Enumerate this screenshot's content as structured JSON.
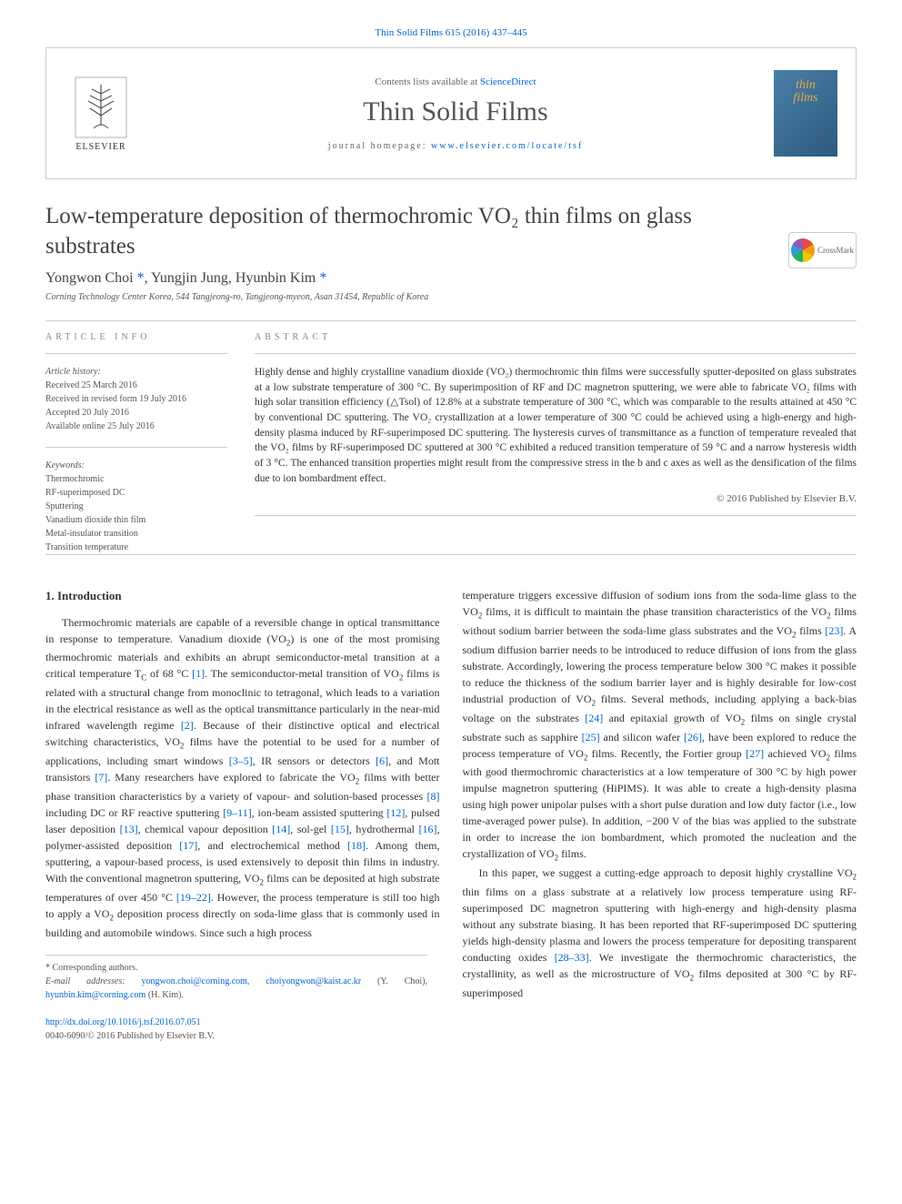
{
  "top_link": "Thin Solid Films 615 (2016) 437–445",
  "header": {
    "contents_prefix": "Contents lists available at ",
    "contents_link": "ScienceDirect",
    "journal_title": "Thin Solid Films",
    "homepage_prefix": "journal homepage: ",
    "homepage_url": "www.elsevier.com/locate/tsf",
    "elsevier_label": "ELSEVIER",
    "cover_line1": "thin",
    "cover_line2": "films"
  },
  "crossmark_label": "CrossMark",
  "title": "Low-temperature deposition of thermochromic VO₂ thin films on glass substrates",
  "authors_html": "Yongwon Choi <span class='star'>*</span>, Yungjin Jung, Hyunbin Kim <span class='star'>*</span>",
  "affiliation": "Corning Technology Center Korea, 544 Tangjeong-ro, Tangjeong-myeon, Asan 31454, Republic of Korea",
  "article_info": {
    "heading": "ARTICLE INFO",
    "history_label": "Article history:",
    "received": "Received 25 March 2016",
    "revised": "Received in revised form 19 July 2016",
    "accepted": "Accepted 20 July 2016",
    "online": "Available online 25 July 2016",
    "keywords_label": "Keywords:",
    "keywords": [
      "Thermochromic",
      "RF-superimposed DC",
      "Sputtering",
      "Vanadium dioxide thin film",
      "Metal-insulator transition",
      "Transition temperature"
    ]
  },
  "abstract": {
    "heading": "ABSTRACT",
    "text": "Highly dense and highly crystalline vanadium dioxide (VO₂) thermochromic thin films were successfully sputter-deposited on glass substrates at a low substrate temperature of 300 °C. By superimposition of RF and DC magnetron sputtering, we were able to fabricate VO₂ films with high solar transition efficiency (△Tsol) of 12.8% at a substrate temperature of 300 °C, which was comparable to the results attained at 450 °C by conventional DC sputtering. The VO₂ crystallization at a lower temperature of 300 °C could be achieved using a high-energy and high-density plasma induced by RF-superimposed DC sputtering. The hysteresis curves of transmittance as a function of temperature revealed that the VO₂ films by RF-superimposed DC sputtered at 300 °C exhibited a reduced transition temperature of 59 °C and a narrow hysteresis width of 3 °C. The enhanced transition properties might result from the compressive stress in the b and c axes as well as the densification of the films due to ion bombardment effect.",
    "copyright": "© 2016 Published by Elsevier B.V."
  },
  "intro": {
    "heading": "1. Introduction",
    "col1_html": "Thermochromic materials are capable of a reversible change in optical transmittance in response to temperature. Vanadium dioxide (VO<span class='sub'>2</span>) is one of the most promising thermochromic materials and exhibits an abrupt semiconductor-metal transition at a critical temperature T<span class='sub'>C</span> of 68 °C <span class='ref'>[1]</span>. The semiconductor-metal transition of VO<span class='sub'>2</span> films is related with a structural change from monoclinic to tetragonal, which leads to a variation in the electrical resistance as well as the optical transmittance particularly in the near-mid infrared wavelength regime <span class='ref'>[2]</span>. Because of their distinctive optical and electrical switching characteristics, VO<span class='sub'>2</span> films have the potential to be used for a number of applications, including smart windows <span class='ref'>[3–5]</span>, IR sensors or detectors <span class='ref'>[6]</span>, and Mott transistors <span class='ref'>[7]</span>. Many researchers have explored to fabricate the VO<span class='sub'>2</span> films with better phase transition characteristics by a variety of vapour- and solution-based processes <span class='ref'>[8]</span> including DC or RF reactive sputtering <span class='ref'>[9–11]</span>, ion-beam assisted sputtering <span class='ref'>[12]</span>, pulsed laser deposition <span class='ref'>[13]</span>, chemical vapour deposition <span class='ref'>[14]</span>, sol-gel <span class='ref'>[15]</span>, hydrothermal <span class='ref'>[16]</span>, polymer-assisted deposition <span class='ref'>[17]</span>, and electrochemical method <span class='ref'>[18]</span>. Among them, sputtering, a vapour-based process, is used extensively to deposit thin films in industry. With the conventional magnetron sputtering, VO<span class='sub'>2</span> films can be deposited at high substrate temperatures of over 450 °C <span class='ref'>[19–22]</span>. However, the process temperature is still too high to apply a VO<span class='sub'>2</span> deposition process directly on soda-lime glass that is commonly used in building and automobile windows. Since such a high process",
    "col2_p1_html": "temperature triggers excessive diffusion of sodium ions from the soda-lime glass to the VO<span class='sub'>2</span> films, it is difficult to maintain the phase transition characteristics of the VO<span class='sub'>2</span> films without sodium barrier between the soda-lime glass substrates and the VO<span class='sub'>2</span> films <span class='ref'>[23]</span>. A sodium diffusion barrier needs to be introduced to reduce diffusion of ions from the glass substrate. Accordingly, lowering the process temperature below 300 °C makes it possible to reduce the thickness of the sodium barrier layer and is highly desirable for low-cost industrial production of VO<span class='sub'>2</span> films. Several methods, including applying a back-bias voltage on the substrates <span class='ref'>[24]</span> and epitaxial growth of VO<span class='sub'>2</span> films on single crystal substrate such as sapphire <span class='ref'>[25]</span> and silicon wafer <span class='ref'>[26]</span>, have been explored to reduce the process temperature of VO<span class='sub'>2</span> films. Recently, the Fortier group <span class='ref'>[27]</span> achieved VO<span class='sub'>2</span> films with good thermochromic characteristics at a low temperature of 300 °C by high power impulse magnetron sputtering (HiPIMS). It was able to create a high-density plasma using high power unipolar pulses with a short pulse duration and low duty factor (i.e., low time-averaged power pulse). In addition, −200 V of the bias was applied to the substrate in order to increase the ion bombardment, which promoted the nucleation and the crystallization of VO<span class='sub'>2</span> films.",
    "col2_p2_html": "In this paper, we suggest a cutting-edge approach to deposit highly crystalline VO<span class='sub'>2</span> thin films on a glass substrate at a relatively low process temperature using RF-superimposed DC magnetron sputtering with high-energy and high-density plasma without any substrate biasing. It has been reported that RF-superimposed DC sputtering yields high-density plasma and lowers the process temperature for depositing transparent conducting oxides <span class='ref'>[28–33]</span>. We investigate the thermochromic characteristics, the crystallinity, as well as the microstructure of VO<span class='sub'>2</span> films deposited at 300 °C by RF-superimposed"
  },
  "footer": {
    "corresp": "* Corresponding authors.",
    "email_label": "E-mail addresses:",
    "email1": "yongwon.choi@corning.com",
    "email2": "choiyongwon@kaist.ac.kr",
    "name1": "(Y. Choi),",
    "email3": "hyunbin.kim@corning.com",
    "name2": "(H. Kim)."
  },
  "doi": {
    "url": "http://dx.doi.org/10.1016/j.tsf.2016.07.051",
    "issn_line": "0040-6090/© 2016 Published by Elsevier B.V."
  },
  "colors": {
    "link": "#0066cc",
    "text": "#333333",
    "muted": "#666666",
    "border": "#cccccc",
    "cover_bg_start": "#4a7fa8",
    "cover_bg_end": "#2d5a7d",
    "cover_text": "#e8a845"
  }
}
